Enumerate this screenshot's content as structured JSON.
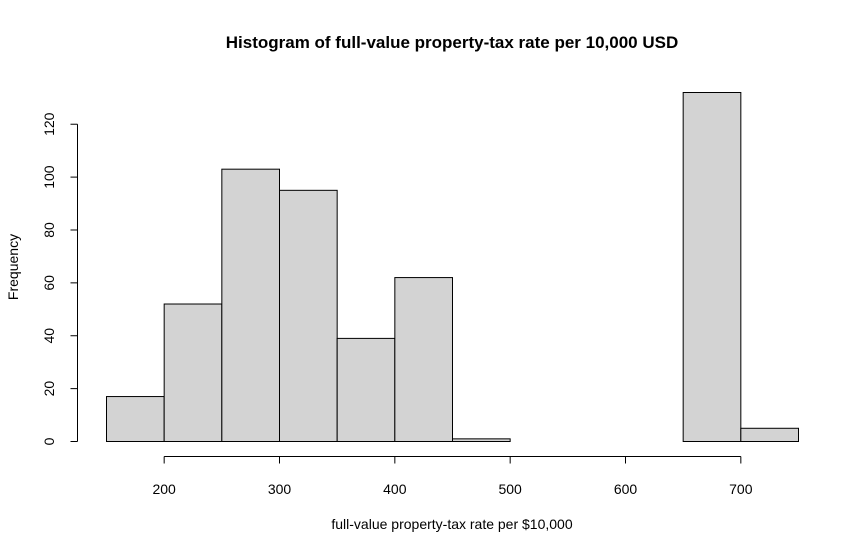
{
  "chart_data": {
    "type": "bar",
    "subtype": "histogram",
    "title": "Histogram of full-value property-tax rate per 10,000 USD",
    "xlabel": "full-value property-tax rate per $10,000",
    "ylabel": "Frequency",
    "bins": [
      {
        "start": 150,
        "end": 200,
        "count": 17
      },
      {
        "start": 200,
        "end": 250,
        "count": 52
      },
      {
        "start": 250,
        "end": 300,
        "count": 103
      },
      {
        "start": 300,
        "end": 350,
        "count": 95
      },
      {
        "start": 350,
        "end": 400,
        "count": 39
      },
      {
        "start": 400,
        "end": 450,
        "count": 62
      },
      {
        "start": 450,
        "end": 500,
        "count": 1
      },
      {
        "start": 500,
        "end": 550,
        "count": 0
      },
      {
        "start": 550,
        "end": 600,
        "count": 0
      },
      {
        "start": 600,
        "end": 650,
        "count": 0
      },
      {
        "start": 650,
        "end": 700,
        "count": 132
      },
      {
        "start": 700,
        "end": 750,
        "count": 5
      }
    ],
    "xticks": [
      200,
      300,
      400,
      500,
      600,
      700
    ],
    "yticks": [
      0,
      20,
      40,
      60,
      80,
      100,
      120
    ],
    "xlim": [
      150,
      750
    ],
    "ylim": [
      0,
      132
    ],
    "grid": false,
    "bar_color": "#d3d3d3",
    "edge_color": "#000000"
  }
}
